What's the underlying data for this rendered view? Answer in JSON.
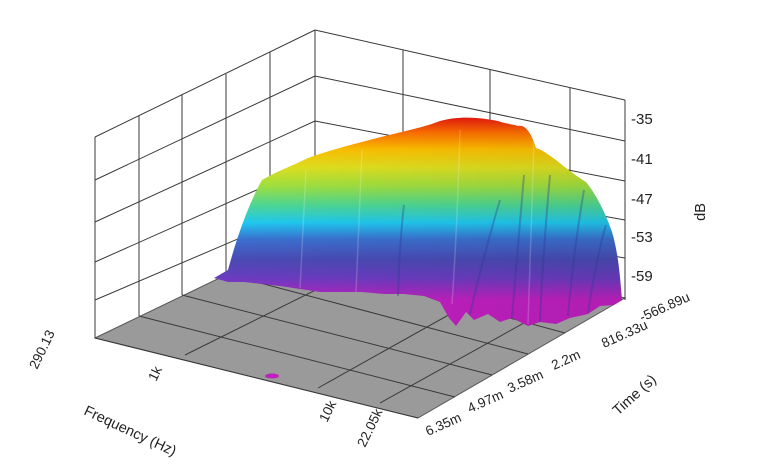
{
  "chart_data": {
    "type": "surface3d",
    "title": "",
    "x_axis": {
      "label": "Frequency (Hz)",
      "scale": "log",
      "ticks": [
        "290.13",
        "1k",
        "10k",
        "22.05k"
      ],
      "range": [
        290.13,
        22050
      ]
    },
    "y_axis": {
      "label": "Time (s)",
      "ticks": [
        "-566.89u",
        "816.33u",
        "2.2m",
        "3.58m",
        "4.97m",
        "6.35m"
      ],
      "range": [
        -0.00056689,
        0.00635
      ]
    },
    "z_axis": {
      "label": "dB",
      "ticks": [
        "-35",
        "-41",
        "-47",
        "-53",
        "-59"
      ],
      "range": [
        -65,
        -35
      ]
    },
    "floor_color": "#9a9a9a",
    "colormap": [
      "#c020c0",
      "#4a4ab4",
      "#3a70d0",
      "#20c8f0",
      "#80e060",
      "#d8e020",
      "#ffd000",
      "#ff8000",
      "#e81010"
    ],
    "grid": true,
    "surface_profile": {
      "frequency_hz": [
        290.13,
        400,
        550,
        750,
        1000,
        1500,
        2200,
        3300,
        5000,
        7000,
        9000,
        10000,
        12000,
        15000,
        18000,
        22050
      ],
      "peak_db": [
        -62,
        -47,
        -45,
        -44,
        -43,
        -42,
        -41,
        -40,
        -38,
        -36,
        -35,
        -37,
        -38,
        -41,
        -45,
        -54
      ]
    }
  }
}
